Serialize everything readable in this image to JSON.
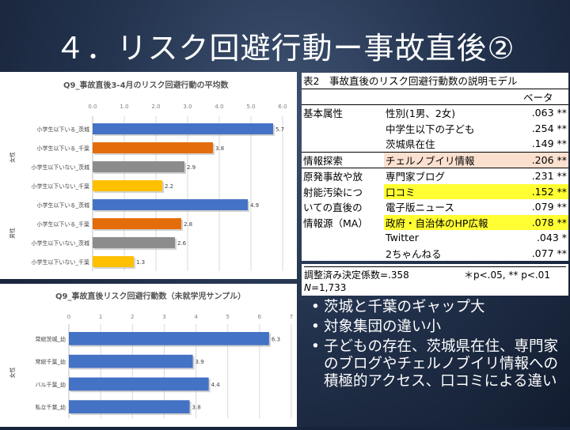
{
  "title": "４．リスク回避行動ー事故直後②",
  "colors": {
    "blue": "#4472c4",
    "orange": "#e46c0a",
    "gray": "#8c8c8c",
    "gold": "#ffc000"
  },
  "chart_data": [
    {
      "type": "bar",
      "orientation": "horizontal",
      "title": "Q9_事故直後3-4月のリスク回避行動の平均数",
      "xlim": [
        0,
        6
      ],
      "xticks": [
        "0.0",
        "1.0",
        "2.0",
        "3.0",
        "4.0",
        "5.0",
        "6.0"
      ],
      "groups": [
        {
          "label": "女性",
          "start": 0,
          "count": 4
        },
        {
          "label": "男性",
          "start": 4,
          "count": 4
        }
      ],
      "categories": [
        "小学生以下いる_茨城",
        "小学生以下いる_千葉",
        "小学生以下いない_茨城",
        "小学生以下いない_千葉",
        "小学生以下いる_茨城",
        "小学生以下いる_千葉",
        "小学生以下いない_茨城",
        "小学生以下いない_千葉"
      ],
      "values": [
        5.7,
        3.8,
        2.9,
        2.2,
        4.9,
        2.8,
        2.6,
        1.3
      ],
      "value_labels": [
        "5.7",
        "3.8",
        "2.9",
        "2.2",
        "4.9",
        "2.8",
        "2.6",
        "1.3"
      ],
      "bar_colors": [
        "#4472c4",
        "#e46c0a",
        "#8c8c8c",
        "#ffc000",
        "#4472c4",
        "#e46c0a",
        "#8c8c8c",
        "#ffc000"
      ],
      "grid": true
    },
    {
      "type": "bar",
      "orientation": "horizontal",
      "title": "Q9_事故直後リスク回避行動数（未就学児サンプル）",
      "xlim": [
        0,
        7
      ],
      "xticks": [
        "0",
        "1",
        "2",
        "3",
        "4",
        "5",
        "6",
        "7"
      ],
      "groups": [
        {
          "label": "女性",
          "start": 0,
          "count": 4
        }
      ],
      "categories": [
        "常総茨城_幼",
        "常総千葉_幼",
        "バル千葉_幼",
        "私立千葉_幼"
      ],
      "values": [
        6.3,
        3.9,
        4.4,
        3.8
      ],
      "value_labels": [
        "6.3",
        "3.9",
        "4.4",
        "3.8"
      ],
      "bar_colors": [
        "#4472c4",
        "#4472c4",
        "#4472c4",
        "#4472c4"
      ],
      "grid": true
    }
  ],
  "table": {
    "caption": "表2　事故直後のリスク回避行動数の説明モデル",
    "beta_header": "ベータ",
    "rows": [
      {
        "group": "基本属性",
        "label": "性別(1男、2女)",
        "value": ".063 **"
      },
      {
        "group": "",
        "label": "中学生以下の子ども",
        "value": ".254 **"
      },
      {
        "group": "",
        "label": "茨城県在住",
        "value": ".149 **"
      },
      {
        "group": "情報探索",
        "label": "チェルノブイリ情報",
        "value": ".206 **"
      },
      {
        "group": "原発事故や放",
        "label": "専門家ブログ",
        "value": ".231 **"
      },
      {
        "group": "射能汚染につ",
        "label": "口コミ",
        "value": ".152 **"
      },
      {
        "group": "いての直後の",
        "label": "電子版ニュース",
        "value": ".079 **"
      },
      {
        "group": "情報源（MA）",
        "label": "政府・自治体のHP広報",
        "value": ".078 **"
      },
      {
        "group": "",
        "label": "Twitter",
        "value": ".043 *"
      },
      {
        "group": "",
        "label": "2ちゃんねる",
        "value": ".077 **"
      }
    ],
    "r2": "調整済み決定係数=.358",
    "sig": "＊p<.05, ** p<.01",
    "n_label": "N",
    "n_value": "=1,733"
  },
  "bullets": [
    "茨城と千葉のギャップ大",
    "対象集団の違い小",
    "子どもの存在、茨城県在住、専門家のブログやチェルノブイリ情報への積極的アクセス、口コミによる違い"
  ]
}
